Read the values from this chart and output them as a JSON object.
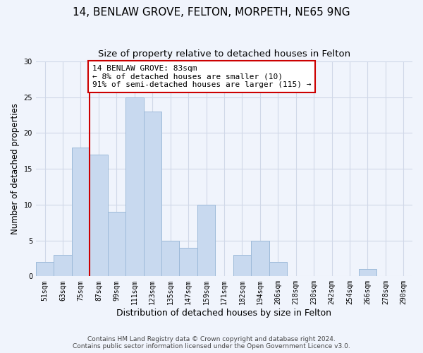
{
  "title": "14, BENLAW GROVE, FELTON, MORPETH, NE65 9NG",
  "subtitle": "Size of property relative to detached houses in Felton",
  "xlabel": "Distribution of detached houses by size in Felton",
  "ylabel": "Number of detached properties",
  "bar_labels": [
    "51sqm",
    "63sqm",
    "75sqm",
    "87sqm",
    "99sqm",
    "111sqm",
    "123sqm",
    "135sqm",
    "147sqm",
    "159sqm",
    "171sqm",
    "182sqm",
    "194sqm",
    "206sqm",
    "218sqm",
    "230sqm",
    "242sqm",
    "254sqm",
    "266sqm",
    "278sqm",
    "290sqm"
  ],
  "bar_values": [
    2,
    3,
    18,
    17,
    9,
    25,
    23,
    5,
    4,
    10,
    0,
    3,
    5,
    2,
    0,
    0,
    0,
    0,
    1,
    0,
    0
  ],
  "bar_color": "#c8d9ef",
  "bar_edge_color": "#9dbad9",
  "vline_color": "#cc0000",
  "annotation_text": "14 BENLAW GROVE: 83sqm\n← 8% of detached houses are smaller (10)\n91% of semi-detached houses are larger (115) →",
  "annotation_box_color": "#ffffff",
  "annotation_box_edge_color": "#cc0000",
  "ylim": [
    0,
    30
  ],
  "yticks": [
    0,
    5,
    10,
    15,
    20,
    25,
    30
  ],
  "grid_color": "#d0d8e8",
  "bg_color": "#f0f4fc",
  "footnote": "Contains HM Land Registry data © Crown copyright and database right 2024.\nContains public sector information licensed under the Open Government Licence v3.0.",
  "title_fontsize": 11,
  "subtitle_fontsize": 9.5,
  "xlabel_fontsize": 9,
  "ylabel_fontsize": 8.5,
  "tick_fontsize": 7,
  "annotation_fontsize": 8,
  "footnote_fontsize": 6.5
}
